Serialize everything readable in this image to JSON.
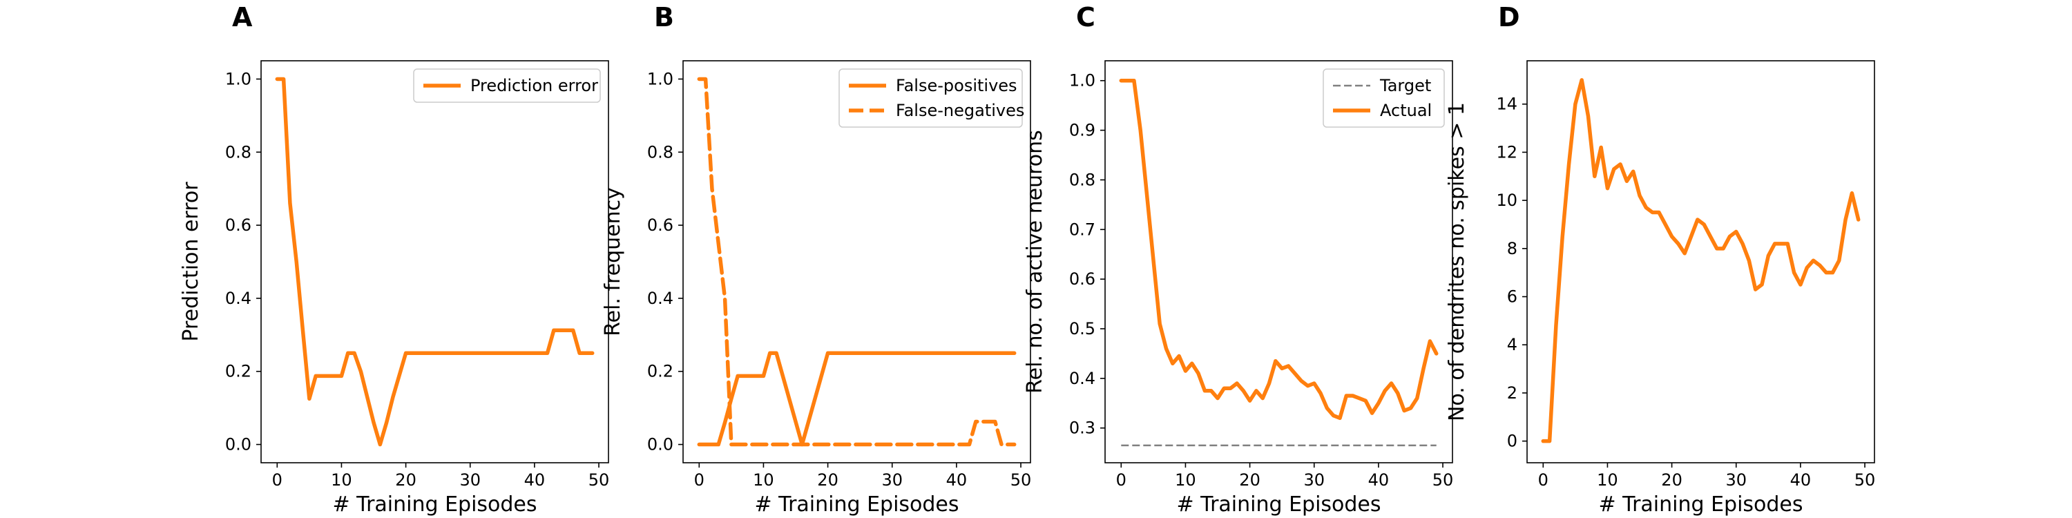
{
  "colors": {
    "orange": "#ff7f0e",
    "gray": "#808080"
  },
  "chart_data": [
    {
      "type": "line",
      "panel": "A",
      "xlabel": "# Training Episodes",
      "ylabel": "Prediction error",
      "xlim": [
        -2.5,
        51.5
      ],
      "ylim": [
        -0.05,
        1.05
      ],
      "xticks": [
        0,
        10,
        20,
        30,
        40,
        50
      ],
      "yticks": [
        0.0,
        0.2,
        0.4,
        0.6,
        0.8,
        1.0
      ],
      "xtick_labels": [
        "0",
        "10",
        "20",
        "30",
        "40",
        "50"
      ],
      "ytick_labels": [
        "0.0",
        "0.2",
        "0.4",
        "0.6",
        "0.8",
        "1.0"
      ],
      "legend": "top-right",
      "series": [
        {
          "name": "Prediction error",
          "color": "#ff7f0e",
          "style": "solid",
          "points": [
            [
              0,
              1.0
            ],
            [
              1,
              1.0
            ],
            [
              2,
              0.66
            ],
            [
              3,
              0.5
            ],
            [
              4,
              0.31
            ],
            [
              5,
              0.125
            ],
            [
              6,
              0.1875
            ],
            [
              7,
              0.1875
            ],
            [
              8,
              0.1875
            ],
            [
              9,
              0.1875
            ],
            [
              10,
              0.1875
            ],
            [
              11,
              0.25
            ],
            [
              12,
              0.25
            ],
            [
              13,
              0.2
            ],
            [
              14,
              0.13
            ],
            [
              15,
              0.06
            ],
            [
              16,
              0.0
            ],
            [
              17,
              0.06
            ],
            [
              18,
              0.13
            ],
            [
              19,
              0.19
            ],
            [
              20,
              0.25
            ],
            [
              21,
              0.25
            ],
            [
              30,
              0.25
            ],
            [
              42,
              0.25
            ],
            [
              43,
              0.3125
            ],
            [
              46,
              0.3125
            ],
            [
              47,
              0.25
            ],
            [
              49,
              0.25
            ]
          ]
        }
      ]
    },
    {
      "type": "line",
      "panel": "B",
      "xlabel": "# Training Episodes",
      "ylabel": "Rel. frequency",
      "xlim": [
        -2.5,
        51.5
      ],
      "ylim": [
        -0.05,
        1.05
      ],
      "xticks": [
        0,
        10,
        20,
        30,
        40,
        50
      ],
      "yticks": [
        0.0,
        0.2,
        0.4,
        0.6,
        0.8,
        1.0
      ],
      "xtick_labels": [
        "0",
        "10",
        "20",
        "30",
        "40",
        "50"
      ],
      "ytick_labels": [
        "0.0",
        "0.2",
        "0.4",
        "0.6",
        "0.8",
        "1.0"
      ],
      "legend": "top-right",
      "series": [
        {
          "name": "False-positives",
          "color": "#ff7f0e",
          "style": "solid",
          "points": [
            [
              0,
              0.0
            ],
            [
              3,
              0.0
            ],
            [
              4,
              0.06
            ],
            [
              5,
              0.125
            ],
            [
              6,
              0.1875
            ],
            [
              7,
              0.1875
            ],
            [
              10,
              0.1875
            ],
            [
              11,
              0.25
            ],
            [
              12,
              0.25
            ],
            [
              16,
              0.0
            ],
            [
              20,
              0.25
            ],
            [
              49,
              0.25
            ]
          ]
        },
        {
          "name": "False-negatives",
          "color": "#ff7f0e",
          "style": "dashed",
          "points": [
            [
              0,
              1.0
            ],
            [
              1,
              1.0
            ],
            [
              2,
              0.7
            ],
            [
              3,
              0.55
            ],
            [
              4,
              0.4
            ],
            [
              5,
              0.0
            ],
            [
              42,
              0.0
            ],
            [
              43,
              0.0625
            ],
            [
              46,
              0.0625
            ],
            [
              47,
              0.0
            ],
            [
              49,
              0.0
            ]
          ]
        }
      ]
    },
    {
      "type": "line",
      "panel": "C",
      "xlabel": "# Training Episodes",
      "ylabel": "Rel. no. of active neurons",
      "xlim": [
        -2.5,
        51.5
      ],
      "ylim": [
        0.23,
        1.04
      ],
      "xticks": [
        0,
        10,
        20,
        30,
        40,
        50
      ],
      "yticks": [
        0.3,
        0.4,
        0.5,
        0.6,
        0.7,
        0.8,
        0.9,
        1.0
      ],
      "xtick_labels": [
        "0",
        "10",
        "20",
        "30",
        "40",
        "50"
      ],
      "ytick_labels": [
        "0.3",
        "0.4",
        "0.5",
        "0.6",
        "0.7",
        "0.8",
        "0.9",
        "1.0"
      ],
      "legend": "top-right",
      "series": [
        {
          "name": "Target",
          "color": "#808080",
          "style": "dashed",
          "points": [
            [
              0,
              0.265
            ],
            [
              49,
              0.265
            ]
          ]
        },
        {
          "name": "Actual",
          "color": "#ff7f0e",
          "style": "solid",
          "points": [
            [
              0,
              1.0
            ],
            [
              1,
              1.0
            ],
            [
              2,
              1.0
            ],
            [
              3,
              0.9
            ],
            [
              4,
              0.77
            ],
            [
              5,
              0.64
            ],
            [
              6,
              0.51
            ],
            [
              7,
              0.46
            ],
            [
              8,
              0.43
            ],
            [
              9,
              0.445
            ],
            [
              10,
              0.415
            ],
            [
              11,
              0.43
            ],
            [
              12,
              0.41
            ],
            [
              13,
              0.375
            ],
            [
              14,
              0.375
            ],
            [
              15,
              0.36
            ],
            [
              16,
              0.38
            ],
            [
              17,
              0.38
            ],
            [
              18,
              0.39
            ],
            [
              19,
              0.375
            ],
            [
              20,
              0.355
            ],
            [
              21,
              0.375
            ],
            [
              22,
              0.36
            ],
            [
              23,
              0.39
            ],
            [
              24,
              0.435
            ],
            [
              25,
              0.42
            ],
            [
              26,
              0.425
            ],
            [
              27,
              0.41
            ],
            [
              28,
              0.395
            ],
            [
              29,
              0.385
            ],
            [
              30,
              0.39
            ],
            [
              31,
              0.37
            ],
            [
              32,
              0.34
            ],
            [
              33,
              0.325
            ],
            [
              34,
              0.32
            ],
            [
              35,
              0.365
            ],
            [
              36,
              0.365
            ],
            [
              37,
              0.36
            ],
            [
              38,
              0.355
            ],
            [
              39,
              0.33
            ],
            [
              40,
              0.35
            ],
            [
              41,
              0.375
            ],
            [
              42,
              0.39
            ],
            [
              43,
              0.37
            ],
            [
              44,
              0.335
            ],
            [
              45,
              0.34
            ],
            [
              46,
              0.36
            ],
            [
              47,
              0.42
            ],
            [
              48,
              0.475
            ],
            [
              49,
              0.45
            ]
          ]
        }
      ]
    },
    {
      "type": "line",
      "panel": "D",
      "xlabel": "# Training Episodes",
      "ylabel": "No. of dendrites no. spikes > 1",
      "xlim": [
        -2.5,
        51.5
      ],
      "ylim": [
        -0.9,
        15.8
      ],
      "xticks": [
        0,
        10,
        20,
        30,
        40,
        50
      ],
      "yticks": [
        0,
        2,
        4,
        6,
        8,
        10,
        12,
        14
      ],
      "xtick_labels": [
        "0",
        "10",
        "20",
        "30",
        "40",
        "50"
      ],
      "ytick_labels": [
        "0",
        "2",
        "4",
        "6",
        "8",
        "10",
        "12",
        "14"
      ],
      "series": [
        {
          "color": "#ff7f0e",
          "style": "solid",
          "points": [
            [
              0,
              0
            ],
            [
              1,
              0
            ],
            [
              2,
              4.8
            ],
            [
              3,
              8.5
            ],
            [
              4,
              11.5
            ],
            [
              5,
              14
            ],
            [
              6,
              15
            ],
            [
              7,
              13.5
            ],
            [
              8,
              11
            ],
            [
              9,
              12.2
            ],
            [
              10,
              10.5
            ],
            [
              11,
              11.3
            ],
            [
              12,
              11.5
            ],
            [
              13,
              10.8
            ],
            [
              14,
              11.2
            ],
            [
              15,
              10.2
            ],
            [
              16,
              9.7
            ],
            [
              17,
              9.5
            ],
            [
              18,
              9.5
            ],
            [
              19,
              9
            ],
            [
              20,
              8.5
            ],
            [
              21,
              8.2
            ],
            [
              22,
              7.8
            ],
            [
              23,
              8.5
            ],
            [
              24,
              9.2
            ],
            [
              25,
              9
            ],
            [
              26,
              8.5
            ],
            [
              27,
              8
            ],
            [
              28,
              8
            ],
            [
              29,
              8.5
            ],
            [
              30,
              8.7
            ],
            [
              31,
              8.2
            ],
            [
              32,
              7.5
            ],
            [
              33,
              6.3
            ],
            [
              34,
              6.5
            ],
            [
              35,
              7.7
            ],
            [
              36,
              8.2
            ],
            [
              37,
              8.2
            ],
            [
              38,
              8.2
            ],
            [
              39,
              7
            ],
            [
              40,
              6.5
            ],
            [
              41,
              7.2
            ],
            [
              42,
              7.5
            ],
            [
              43,
              7.3
            ],
            [
              44,
              7
            ],
            [
              45,
              7
            ],
            [
              46,
              7.5
            ],
            [
              47,
              9.2
            ],
            [
              48,
              10.3
            ],
            [
              49,
              9.2
            ]
          ]
        }
      ]
    }
  ]
}
